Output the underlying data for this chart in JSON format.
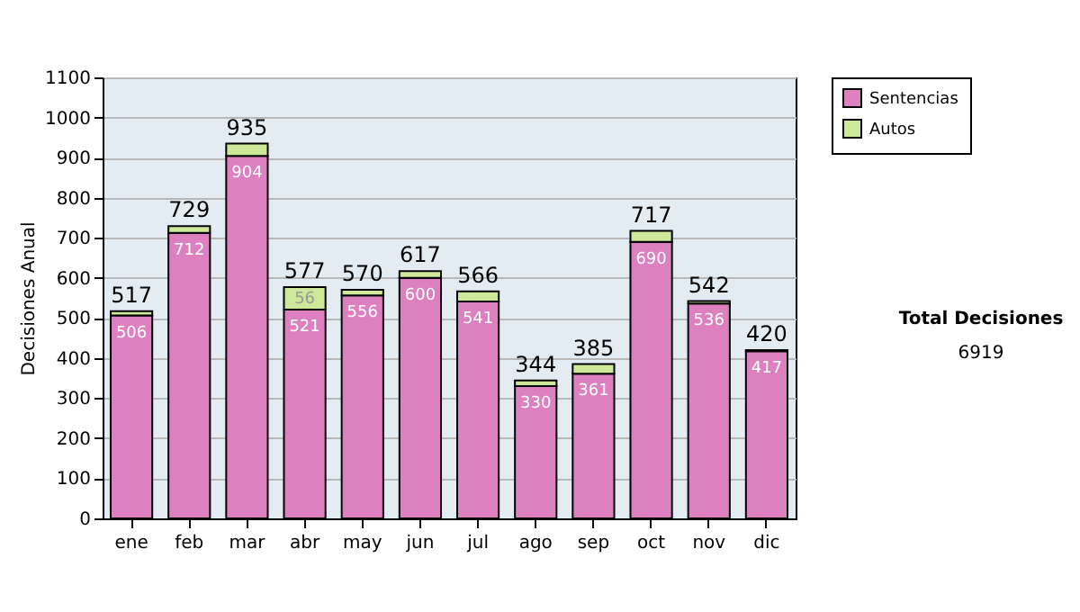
{
  "chart_data": {
    "type": "bar",
    "stacked": true,
    "ylabel": "Decisiones Anual",
    "categories": [
      "ene",
      "feb",
      "mar",
      "abr",
      "may",
      "jun",
      "jul",
      "ago",
      "sep",
      "oct",
      "nov",
      "dic"
    ],
    "series": [
      {
        "name": "Sentencias",
        "color": "#dd80c0",
        "values": [
          506,
          712,
          904,
          521,
          556,
          600,
          541,
          330,
          361,
          690,
          536,
          417
        ],
        "value_labels": [
          "506",
          "712",
          "904",
          "521",
          "556",
          "600",
          "541",
          "330",
          "361",
          "690",
          "536",
          "417"
        ]
      },
      {
        "name": "Autos",
        "color": "#cce898",
        "values": [
          11,
          17,
          31,
          56,
          14,
          17,
          25,
          14,
          24,
          27,
          6,
          3
        ],
        "value_labels": [
          null,
          null,
          null,
          "56",
          null,
          null,
          null,
          null,
          null,
          null,
          null,
          null
        ]
      }
    ],
    "totals": [
      "517",
      "729",
      "935",
      "577",
      "570",
      "617",
      "566",
      "344",
      "385",
      "717",
      "542",
      "420"
    ],
    "ylim": [
      0,
      1100
    ],
    "yticks": [
      0,
      100,
      200,
      300,
      400,
      500,
      600,
      700,
      800,
      900,
      1000,
      1100
    ],
    "grid": "y",
    "legend": "right",
    "annotations": [
      "Total Decisiones",
      "6919"
    ]
  }
}
